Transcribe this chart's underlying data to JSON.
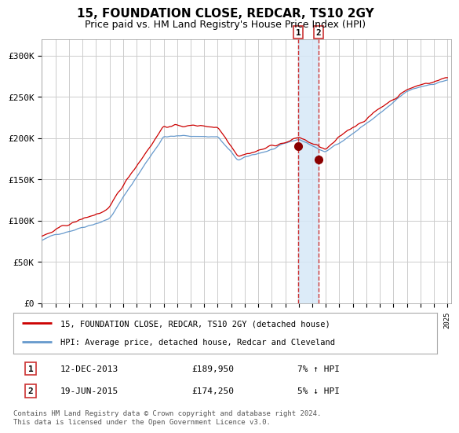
{
  "title": "15, FOUNDATION CLOSE, REDCAR, TS10 2GY",
  "subtitle": "Price paid vs. HM Land Registry's House Price Index (HPI)",
  "title_fontsize": 11,
  "subtitle_fontsize": 9,
  "line1_label": "15, FOUNDATION CLOSE, REDCAR, TS10 2GY (detached house)",
  "line2_label": "HPI: Average price, detached house, Redcar and Cleveland",
  "line1_color": "#cc0000",
  "line2_color": "#6699cc",
  "marker_color": "#8b0000",
  "highlight_color": "#d6e8f7",
  "vline_color": "#cc3333",
  "ylim": [
    0,
    320000
  ],
  "yticks": [
    0,
    50000,
    100000,
    150000,
    200000,
    250000,
    300000
  ],
  "ytick_labels": [
    "£0",
    "£50K",
    "£100K",
    "£150K",
    "£200K",
    "£250K",
    "£300K"
  ],
  "footer": "Contains HM Land Registry data © Crown copyright and database right 2024.\nThis data is licensed under the Open Government Licence v3.0.",
  "bg_color": "#ffffff",
  "grid_color": "#cccccc",
  "sale1_year": 2013.95,
  "sale2_year": 2015.47,
  "sale1_price": 189950,
  "sale2_price": 174250,
  "annotation1_date": "12-DEC-2013",
  "annotation2_date": "19-JUN-2015",
  "annotation1_price": "£189,950",
  "annotation2_price": "£174,250",
  "annotation1_hpi": "7% ↑ HPI",
  "annotation2_hpi": "5% ↓ HPI"
}
